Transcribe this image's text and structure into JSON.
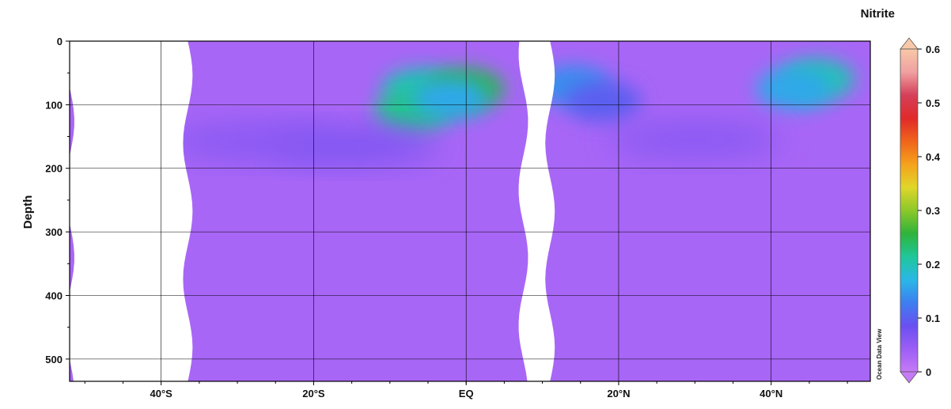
{
  "chart_data": {
    "type": "heatmap",
    "title": "Nitrite",
    "ylabel": "Depth",
    "xlabel": "",
    "credit": "Ocean Data View",
    "xlim": [
      -52,
      53
    ],
    "ylim": [
      0,
      535
    ],
    "y_inverted": true,
    "grid": true,
    "x_ticks": [
      {
        "value": -40,
        "label": "40°S"
      },
      {
        "value": -20,
        "label": "20°S"
      },
      {
        "value": 0,
        "label": "EQ"
      },
      {
        "value": 20,
        "label": "20°N"
      },
      {
        "value": 40,
        "label": "40°N"
      }
    ],
    "y_ticks": [
      {
        "value": 0,
        "label": "0"
      },
      {
        "value": 100,
        "label": "100"
      },
      {
        "value": 200,
        "label": "200"
      },
      {
        "value": 300,
        "label": "300"
      },
      {
        "value": 400,
        "label": "400"
      },
      {
        "value": 500,
        "label": "500"
      }
    ],
    "colorbar": {
      "range": [
        0,
        0.6
      ],
      "ticks": [
        {
          "value": 0,
          "label": "0"
        },
        {
          "value": 0.1,
          "label": "0.1"
        },
        {
          "value": 0.2,
          "label": "0.2"
        },
        {
          "value": 0.3,
          "label": "0.3"
        },
        {
          "value": 0.4,
          "label": "0.4"
        },
        {
          "value": 0.5,
          "label": "0.5"
        },
        {
          "value": 0.6,
          "label": "0.6"
        }
      ],
      "colors": [
        "#c67af7",
        "#9b5ef5",
        "#6a4ff0",
        "#3d7ff0",
        "#2ab8e6",
        "#1fc79a",
        "#2fb33a",
        "#8cc82a",
        "#e0d62a",
        "#f5a21c",
        "#f0641c",
        "#e02a2a",
        "#d4405a",
        "#f0a0a0",
        "#f8c8a8"
      ]
    },
    "data_gaps_lat": [
      [
        -52,
        -36.5
      ],
      [
        7.5,
        11
      ]
    ],
    "background_value": 0.03,
    "features": [
      {
        "lat": -6,
        "depth": 75,
        "value": 0.2
      },
      {
        "lat": -7,
        "depth": 110,
        "value": 0.22
      },
      {
        "lat": 0,
        "depth": 75,
        "value": 0.25
      },
      {
        "lat": -2,
        "depth": 90,
        "value": 0.16
      },
      {
        "lat": 14,
        "depth": 70,
        "value": 0.14
      },
      {
        "lat": 18,
        "depth": 95,
        "value": 0.1
      },
      {
        "lat": 46,
        "depth": 60,
        "value": 0.2
      },
      {
        "lat": 43,
        "depth": 75,
        "value": 0.16
      },
      {
        "lat": -15,
        "depth": 165,
        "value": 0.07
      },
      {
        "lat": -28,
        "depth": 158,
        "value": 0.06
      },
      {
        "lat": 30,
        "depth": 155,
        "value": 0.06
      }
    ]
  }
}
